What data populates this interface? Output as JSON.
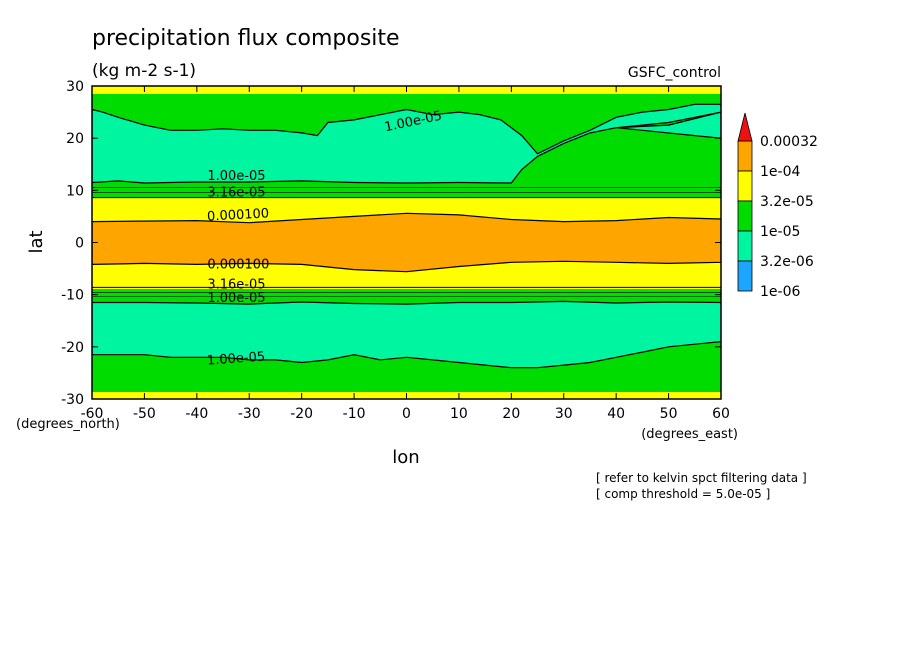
{
  "chart_data": {
    "type": "heatmap",
    "title": "precipitation flux composite",
    "subtitle": "(kg m-2 s-1)",
    "source_label": "GSFC_control",
    "xlabel": "lon",
    "ylabel": "lat",
    "x_unit_label": "(degrees_east)",
    "y_unit_label": "(degrees_north)",
    "xlim": [
      -60,
      60
    ],
    "ylim": [
      -30,
      30
    ],
    "x_ticks": [
      -60,
      -50,
      -40,
      -30,
      -20,
      -10,
      0,
      10,
      20,
      30,
      40,
      50,
      60
    ],
    "y_ticks": [
      -30,
      -20,
      -10,
      0,
      10,
      20,
      30
    ],
    "x_tick_labels": [
      "-60",
      "-50",
      "-40",
      "-30",
      "-20",
      "-10",
      "0",
      "10",
      "20",
      "30",
      "40",
      "50",
      "60"
    ],
    "y_tick_labels": [
      "-30",
      "-20",
      "-10",
      "0",
      "10",
      "20",
      "30"
    ],
    "colorbar": {
      "levels": [
        "1e-06",
        "3.2e-06",
        "1e-05",
        "3.2e-05",
        "1e-04",
        "0.00032"
      ],
      "colors": [
        "#1ea5ff",
        "#00f5a0",
        "#00dc00",
        "#ffff00",
        "#ffa500",
        "#ee1111"
      ]
    },
    "regions": [
      {
        "color": "#ffa500",
        "pts": [
          [
            -60,
            4.0
          ],
          [
            -40,
            4.2
          ],
          [
            -30,
            3.8
          ],
          [
            -20,
            4.4
          ],
          [
            -10,
            5.0
          ],
          [
            0,
            5.6
          ],
          [
            10,
            5.3
          ],
          [
            20,
            4.4
          ],
          [
            30,
            4.0
          ],
          [
            40,
            4.2
          ],
          [
            50,
            4.8
          ],
          [
            60,
            4.5
          ],
          [
            60,
            -3.8
          ],
          [
            50,
            -4.0
          ],
          [
            40,
            -3.8
          ],
          [
            30,
            -3.6
          ],
          [
            20,
            -3.8
          ],
          [
            10,
            -4.6
          ],
          [
            0,
            -5.6
          ],
          [
            -10,
            -5.2
          ],
          [
            -20,
            -4.2
          ],
          [
            -30,
            -4.0
          ],
          [
            -40,
            -4.2
          ],
          [
            -50,
            -4.0
          ],
          [
            -60,
            -4.2
          ]
        ]
      },
      {
        "color": "#00f5a0",
        "pts": [
          [
            -60,
            11.5
          ],
          [
            -55,
            11.8
          ],
          [
            -50,
            11.4
          ],
          [
            -40,
            11.6
          ],
          [
            -30,
            11.6
          ],
          [
            -20,
            11.8
          ],
          [
            -10,
            11.5
          ],
          [
            0,
            11.4
          ],
          [
            10,
            11.5
          ],
          [
            20,
            11.4
          ],
          [
            22,
            14.0
          ],
          [
            25,
            16.5
          ],
          [
            30,
            19.0
          ],
          [
            35,
            21.0
          ],
          [
            40,
            22.0
          ],
          [
            45,
            22.5
          ],
          [
            50,
            23.0
          ],
          [
            55,
            24.0
          ],
          [
            60,
            25.0
          ],
          [
            60,
            20.0
          ],
          [
            55,
            20.5
          ],
          [
            45,
            21.5
          ],
          [
            40,
            22.0
          ],
          [
            50,
            22.5
          ],
          [
            60,
            25.0
          ],
          [
            60,
            26.5
          ],
          [
            55,
            26.5
          ],
          [
            50,
            25.5
          ],
          [
            45,
            25.0
          ],
          [
            40,
            24.0
          ],
          [
            35,
            21.5
          ],
          [
            30,
            19.5
          ],
          [
            25,
            17.0
          ],
          [
            22,
            20.5
          ],
          [
            18,
            23.5
          ],
          [
            14,
            24.5
          ],
          [
            10,
            25.0
          ],
          [
            5,
            24.5
          ],
          [
            0,
            25.5
          ],
          [
            -5,
            24.5
          ],
          [
            -10,
            23.5
          ],
          [
            -15,
            23.0
          ],
          [
            -17,
            20.5
          ],
          [
            -20,
            21.0
          ],
          [
            -25,
            21.5
          ],
          [
            -30,
            21.5
          ],
          [
            -35,
            21.8
          ],
          [
            -40,
            21.5
          ],
          [
            -45,
            21.5
          ],
          [
            -50,
            22.5
          ],
          [
            -55,
            24.0
          ],
          [
            -58,
            25.0
          ],
          [
            -60,
            25.5
          ]
        ]
      },
      {
        "color": "#00f5a0",
        "pts": [
          [
            -60,
            -11.5
          ],
          [
            -50,
            -11.5
          ],
          [
            -40,
            -11.6
          ],
          [
            -30,
            -11.8
          ],
          [
            -20,
            -11.4
          ],
          [
            -10,
            -11.7
          ],
          [
            0,
            -11.8
          ],
          [
            10,
            -11.5
          ],
          [
            20,
            -11.5
          ],
          [
            30,
            -11.3
          ],
          [
            40,
            -11.6
          ],
          [
            50,
            -11.4
          ],
          [
            60,
            -11.5
          ],
          [
            60,
            -19.0
          ],
          [
            55,
            -19.5
          ],
          [
            50,
            -20.0
          ],
          [
            45,
            -21.0
          ],
          [
            40,
            -22.0
          ],
          [
            35,
            -23.0
          ],
          [
            30,
            -23.5
          ],
          [
            25,
            -24.0
          ],
          [
            20,
            -24.0
          ],
          [
            15,
            -23.5
          ],
          [
            10,
            -23.0
          ],
          [
            5,
            -22.5
          ],
          [
            0,
            -22.0
          ],
          [
            -5,
            -22.5
          ],
          [
            -10,
            -21.5
          ],
          [
            -15,
            -22.5
          ],
          [
            -20,
            -23.0
          ],
          [
            -25,
            -22.5
          ],
          [
            -30,
            -22.5
          ],
          [
            -35,
            -22.0
          ],
          [
            -40,
            -22.0
          ],
          [
            -45,
            -22.0
          ],
          [
            -50,
            -21.5
          ],
          [
            -55,
            -21.5
          ],
          [
            -60,
            -21.5
          ]
        ]
      }
    ],
    "contour_labels": [
      {
        "text": "1.00e-05",
        "lon": -4,
        "lat": 21.3,
        "angle": -12
      },
      {
        "text": "1.00e-05",
        "lon": -38,
        "lat": 12.0,
        "angle": 0
      },
      {
        "text": "3.16e-05",
        "lon": -38,
        "lat": 8.8,
        "angle": 0
      },
      {
        "text": "0.000100",
        "lon": -38,
        "lat": 4.2,
        "angle": -3
      },
      {
        "text": "0.000100",
        "lon": -38,
        "lat": -5.0,
        "angle": 0
      },
      {
        "text": "3.16e-05",
        "lon": -38,
        "lat": -8.8,
        "angle": 0
      },
      {
        "text": "1.00e-05",
        "lon": -38,
        "lat": -11.4,
        "angle": 0
      },
      {
        "text": "1.00e-05",
        "lon": -38,
        "lat": -23.4,
        "angle": -4
      }
    ],
    "notes": [
      "[ refer to kelvin spct filtering data ]",
      "[ comp threshold = 5.0e-05 ]"
    ]
  }
}
